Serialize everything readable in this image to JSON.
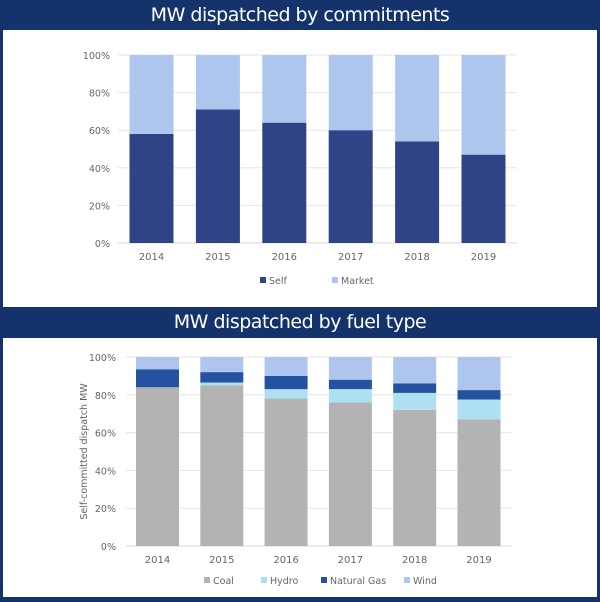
{
  "colors": {
    "frame": "#14336b",
    "self": "#2f4387",
    "market": "#aec6ee",
    "coal": "#b3b3b3",
    "hydro": "#aee0f2",
    "natural_gas": "#2452a0",
    "wind": "#aec6ee",
    "grid": "#e6e6e6",
    "text": "#666666"
  },
  "chart_data": [
    {
      "type": "bar",
      "stacked": true,
      "title": "MW dispatched by commitments",
      "xlabel": "",
      "ylabel": "",
      "categories": [
        "2014",
        "2015",
        "2016",
        "2017",
        "2018",
        "2019"
      ],
      "series": [
        {
          "name": "Self",
          "color_key": "self",
          "values": [
            58,
            71,
            64,
            60,
            54,
            47
          ]
        },
        {
          "name": "Market",
          "color_key": "market",
          "values": [
            42,
            29,
            36,
            40,
            46,
            53
          ]
        }
      ],
      "ylim": [
        0,
        100
      ],
      "yticks": [
        "0%",
        "20%",
        "40%",
        "60%",
        "80%",
        "100%"
      ],
      "grid": true,
      "legend": "bottom"
    },
    {
      "type": "bar",
      "stacked": true,
      "title": "MW dispatched by fuel type",
      "xlabel": "",
      "ylabel": "Self-committed dispatch MW",
      "categories": [
        "2014",
        "2015",
        "2016",
        "2017",
        "2018",
        "2019"
      ],
      "series": [
        {
          "name": "Coal",
          "color_key": "coal",
          "values": [
            84,
            85,
            78,
            76,
            72,
            67
          ]
        },
        {
          "name": "Hydro",
          "color_key": "hydro",
          "values": [
            0,
            1.5,
            5,
            7,
            9,
            10.5
          ]
        },
        {
          "name": "Natural Gas",
          "color_key": "natural_gas",
          "values": [
            9.5,
            5.5,
            7,
            5,
            5,
            5
          ]
        },
        {
          "name": "Wind",
          "color_key": "wind",
          "values": [
            6.5,
            8,
            10,
            12,
            14,
            17.5
          ]
        }
      ],
      "ylim": [
        0,
        100
      ],
      "yticks": [
        "0%",
        "20%",
        "40%",
        "60%",
        "80%",
        "100%"
      ],
      "grid": true,
      "legend": "bottom"
    }
  ]
}
